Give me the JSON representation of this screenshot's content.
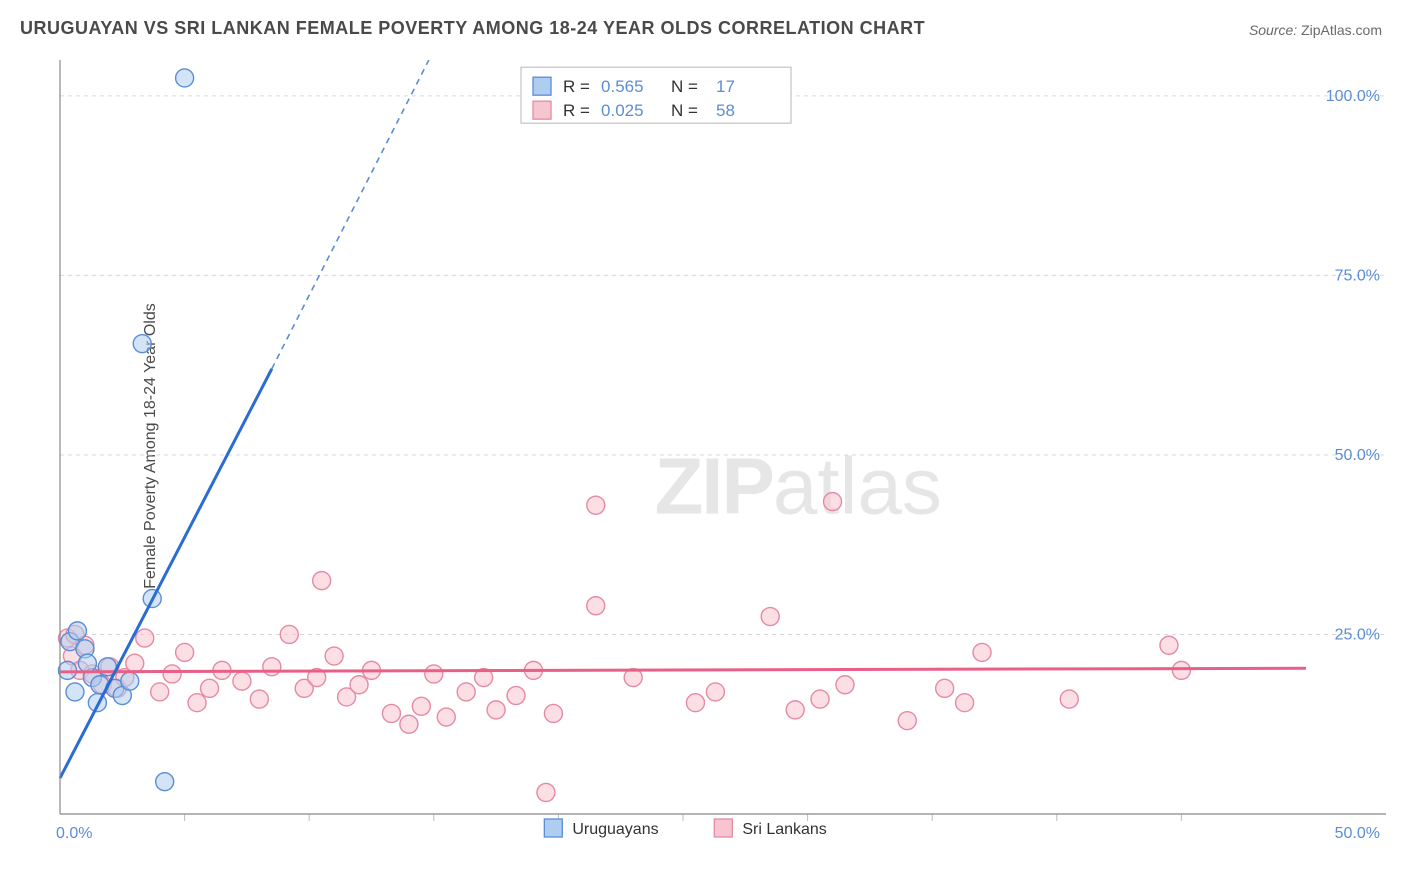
{
  "title": "URUGUAYAN VS SRI LANKAN FEMALE POVERTY AMONG 18-24 YEAR OLDS CORRELATION CHART",
  "source_label": "Source:",
  "source_value": "ZipAtlas.com",
  "ylabel": "Female Poverty Among 18-24 Year Olds",
  "watermark_bold": "ZIP",
  "watermark_light": "atlas",
  "chart": {
    "type": "scatter",
    "xlim": [
      0,
      50
    ],
    "ylim": [
      0,
      105
    ],
    "yticks": [
      25,
      50,
      75,
      100
    ],
    "ytick_labels": [
      "25.0%",
      "50.0%",
      "75.0%",
      "100.0%"
    ],
    "x_origin_label": "0.0%",
    "x_end_label": "50.0%",
    "background_color": "#ffffff",
    "grid_color": "#d8d8d8",
    "axis_color": "#888888",
    "series": [
      {
        "name": "Uruguayans",
        "marker_color_fill": "#aecdf0",
        "marker_color_stroke": "#5b8dd6",
        "marker_fill_opacity": 0.55,
        "marker_radius": 9,
        "trend_color": "#2b6cd4",
        "trend_width": 3,
        "trend_dash_color": "#5b8dd6",
        "R": "0.565",
        "N": "17",
        "trend": {
          "x1": 0,
          "y1": 5,
          "x2": 8.5,
          "y2": 62,
          "x2_dash": 14.8,
          "y2_dash": 105
        },
        "points": [
          [
            5.0,
            102.5
          ],
          [
            3.3,
            65.5
          ],
          [
            3.7,
            30.0
          ],
          [
            4.2,
            4.5
          ],
          [
            0.4,
            24.0
          ],
          [
            0.7,
            25.5
          ],
          [
            1.0,
            23.0
          ],
          [
            0.3,
            20.0
          ],
          [
            1.3,
            19.0
          ],
          [
            1.6,
            18.0
          ],
          [
            1.9,
            20.5
          ],
          [
            2.2,
            17.5
          ],
          [
            2.5,
            16.5
          ],
          [
            2.8,
            18.5
          ],
          [
            0.6,
            17.0
          ],
          [
            1.1,
            21.0
          ],
          [
            1.5,
            15.5
          ]
        ]
      },
      {
        "name": "Sri Lankans",
        "marker_color_fill": "#f7c5d0",
        "marker_color_stroke": "#e68aa3",
        "marker_fill_opacity": 0.55,
        "marker_radius": 9,
        "trend_color": "#e85f88",
        "trend_width": 3,
        "R": "0.025",
        "N": "58",
        "trend": {
          "x1": 0,
          "y1": 19.8,
          "x2": 50,
          "y2": 20.3
        },
        "points": [
          [
            0.3,
            24.5
          ],
          [
            0.5,
            22.0
          ],
          [
            0.6,
            25.0
          ],
          [
            0.8,
            20.0
          ],
          [
            1.0,
            23.5
          ],
          [
            1.3,
            19.5
          ],
          [
            1.7,
            18.0
          ],
          [
            2.0,
            20.5
          ],
          [
            2.3,
            17.5
          ],
          [
            2.6,
            19.0
          ],
          [
            3.0,
            21.0
          ],
          [
            3.4,
            24.5
          ],
          [
            4.0,
            17.0
          ],
          [
            4.5,
            19.5
          ],
          [
            5.0,
            22.5
          ],
          [
            5.5,
            15.5
          ],
          [
            6.0,
            17.5
          ],
          [
            6.5,
            20.0
          ],
          [
            7.3,
            18.5
          ],
          [
            8.0,
            16.0
          ],
          [
            8.5,
            20.5
          ],
          [
            9.2,
            25.0
          ],
          [
            9.8,
            17.5
          ],
          [
            10.3,
            19.0
          ],
          [
            10.5,
            32.5
          ],
          [
            11.0,
            22.0
          ],
          [
            11.5,
            16.3
          ],
          [
            12.0,
            18.0
          ],
          [
            12.5,
            20.0
          ],
          [
            13.3,
            14.0
          ],
          [
            14.0,
            12.5
          ],
          [
            14.5,
            15.0
          ],
          [
            15.0,
            19.5
          ],
          [
            15.5,
            13.5
          ],
          [
            16.3,
            17.0
          ],
          [
            17.0,
            19.0
          ],
          [
            17.5,
            14.5
          ],
          [
            18.3,
            16.5
          ],
          [
            19.0,
            20.0
          ],
          [
            19.5,
            3.0
          ],
          [
            19.8,
            14.0
          ],
          [
            21.5,
            43.0
          ],
          [
            21.5,
            29.0
          ],
          [
            23.0,
            19.0
          ],
          [
            25.5,
            15.5
          ],
          [
            26.3,
            17.0
          ],
          [
            28.5,
            27.5
          ],
          [
            29.5,
            14.5
          ],
          [
            30.5,
            16.0
          ],
          [
            31.0,
            43.5
          ],
          [
            31.5,
            18.0
          ],
          [
            34.0,
            13.0
          ],
          [
            35.5,
            17.5
          ],
          [
            36.3,
            15.5
          ],
          [
            37.0,
            22.5
          ],
          [
            40.5,
            16.0
          ],
          [
            44.5,
            23.5
          ],
          [
            45.0,
            20.0
          ]
        ]
      }
    ]
  },
  "legend_top": {
    "r_label": "R =",
    "n_label": "N ="
  },
  "bottom_legend": {
    "items": [
      "Uruguayans",
      "Sri Lankans"
    ]
  }
}
